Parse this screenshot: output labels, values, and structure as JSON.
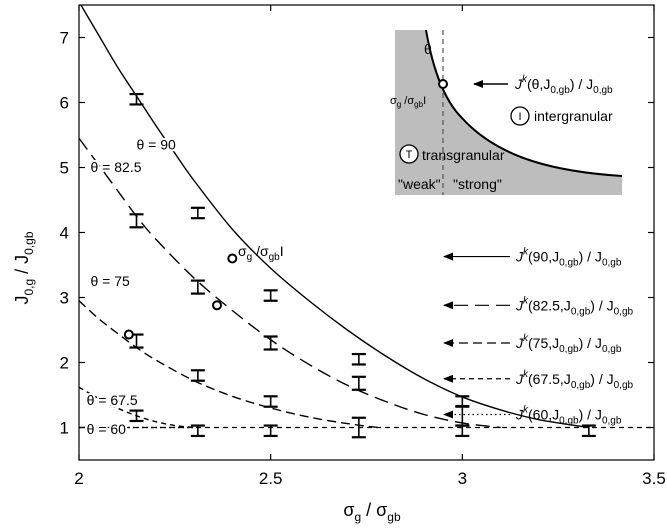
{
  "chart_data": {
    "type": "line",
    "xlabel_parts": [
      "σ",
      "g",
      " / σ",
      "gb"
    ],
    "ylabel_parts": [
      "J",
      "0,g",
      " / J",
      "0,gb"
    ],
    "xlim": [
      2,
      3.5
    ],
    "ylim": [
      0.5,
      7.5
    ],
    "x_ticks": [
      "2",
      "2.5",
      "3",
      "3.5"
    ],
    "y_ticks": [
      "1",
      "2",
      "3",
      "4",
      "5",
      "6",
      "7"
    ],
    "grid": false,
    "series": [
      {
        "name": "θ = 90",
        "style": "solid",
        "points": [
          [
            2.0,
            7.55
          ],
          [
            2.05,
            7.05
          ],
          [
            2.1,
            6.55
          ],
          [
            2.15,
            6.1
          ],
          [
            2.2,
            5.65
          ],
          [
            2.25,
            5.22
          ],
          [
            2.3,
            4.8
          ],
          [
            2.4,
            4.05
          ],
          [
            2.5,
            3.45
          ],
          [
            2.6,
            2.95
          ],
          [
            2.7,
            2.5
          ],
          [
            2.8,
            2.1
          ],
          [
            2.9,
            1.75
          ],
          [
            3.0,
            1.47
          ],
          [
            3.1,
            1.27
          ],
          [
            3.2,
            1.12
          ],
          [
            3.33,
            1.0
          ]
        ],
        "error_points": [
          [
            2.15,
            6.05,
            0.08
          ],
          [
            2.31,
            4.3,
            0.08
          ],
          [
            2.5,
            3.03,
            0.08
          ],
          [
            2.73,
            2.05,
            0.08
          ],
          [
            3.0,
            1.4,
            0.08
          ],
          [
            3.33,
            0.95,
            0.08
          ]
        ]
      },
      {
        "name": "θ = 82.5",
        "style": "long-dash",
        "points": [
          [
            2.0,
            5.45
          ],
          [
            2.05,
            5.05
          ],
          [
            2.1,
            4.65
          ],
          [
            2.15,
            4.25
          ],
          [
            2.2,
            3.9
          ],
          [
            2.3,
            3.3
          ],
          [
            2.4,
            2.8
          ],
          [
            2.5,
            2.35
          ],
          [
            2.6,
            1.97
          ],
          [
            2.7,
            1.65
          ],
          [
            2.8,
            1.4
          ],
          [
            2.9,
            1.2
          ],
          [
            3.0,
            1.07
          ],
          [
            3.1,
            1.0
          ]
        ],
        "error_points": [
          [
            2.15,
            4.18,
            0.1
          ],
          [
            2.31,
            3.16,
            0.1
          ],
          [
            2.5,
            2.3,
            0.1
          ],
          [
            2.73,
            1.68,
            0.1
          ],
          [
            3.0,
            1.18,
            0.15
          ]
        ]
      },
      {
        "name": "θ = 75",
        "style": "dash",
        "points": [
          [
            2.0,
            2.95
          ],
          [
            2.05,
            2.68
          ],
          [
            2.1,
            2.45
          ],
          [
            2.15,
            2.23
          ],
          [
            2.2,
            2.04
          ],
          [
            2.3,
            1.72
          ],
          [
            2.4,
            1.48
          ],
          [
            2.5,
            1.3
          ],
          [
            2.6,
            1.16
          ],
          [
            2.7,
            1.06
          ],
          [
            2.78,
            1.0
          ]
        ],
        "error_points": [
          [
            2.15,
            2.33,
            0.1
          ],
          [
            2.31,
            1.8,
            0.08
          ],
          [
            2.5,
            1.4,
            0.08
          ],
          [
            2.73,
            1.0,
            0.15
          ]
        ]
      },
      {
        "name": "θ = 67.5",
        "style": "short-dash",
        "points": [
          [
            2.0,
            1.62
          ],
          [
            2.05,
            1.45
          ],
          [
            2.1,
            1.3
          ],
          [
            2.15,
            1.18
          ],
          [
            2.2,
            1.09
          ],
          [
            2.25,
            1.03
          ],
          [
            2.3,
            1.0
          ]
        ],
        "error_points": [
          [
            2.15,
            1.18,
            0.08
          ]
        ]
      },
      {
        "name": "θ = 60",
        "style": "dotted",
        "points": [
          [
            2.0,
            1.0
          ],
          [
            2.3,
            1.0
          ]
        ],
        "error_points": [
          [
            2.31,
            0.95,
            0.08
          ],
          [
            2.5,
            0.95,
            0.08
          ],
          [
            3.0,
            0.95,
            0.08
          ]
        ]
      }
    ],
    "asymptote": {
      "y": 1,
      "xlim": [
        2,
        3.5
      ],
      "style": "short-dash"
    },
    "open_markers": [
      [
        2.4,
        3.6
      ],
      [
        2.36,
        2.88
      ],
      [
        2.13,
        2.43
      ]
    ],
    "marker_label_parts": [
      "σ",
      "g",
      " /σ",
      "gb",
      "I"
    ],
    "curve_labels": [
      {
        "series": "θ = 90",
        "text": "θ = 90"
      },
      {
        "series": "θ = 82.5",
        "text": "θ = 82.5"
      },
      {
        "series": "θ = 75",
        "text": "θ = 75"
      },
      {
        "series": "θ = 67.5",
        "text": "θ = 67.5"
      },
      {
        "series": "θ = 60",
        "text": "θ = 60"
      }
    ],
    "arrow_labels": [
      {
        "y": 3.63,
        "style": "solid",
        "theta": "90"
      },
      {
        "y": 2.88,
        "style": "long-dash",
        "theta": "82.5"
      },
      {
        "y": 2.3,
        "style": "dash",
        "theta": "75"
      },
      {
        "y": 1.75,
        "style": "short-dash",
        "theta": "67.5"
      },
      {
        "y": 1.2,
        "style": "dotted",
        "theta": "60"
      }
    ],
    "arrow_label_parts": {
      "J": "J",
      "k": "k",
      "open": "(",
      "sub": "0,gb",
      "close": ") / J",
      "tail_sub": "0,gb"
    }
  },
  "inset": {
    "theta": "θ",
    "sigma_label_parts": [
      "σ",
      "g",
      " /σ",
      "gb",
      "I"
    ],
    "arrow_label_parts": [
      "J",
      "k",
      "(θ,J",
      "0,gb",
      ") / J",
      "0,gb"
    ],
    "intergranular_symbol": "I",
    "intergranular_label": "intergranular",
    "transgranular_symbol": "T",
    "transgranular_label": "transgranular",
    "weak_label": "\"weak\"",
    "strong_label": "\"strong\"",
    "fill_color": "#bdbdbd"
  }
}
